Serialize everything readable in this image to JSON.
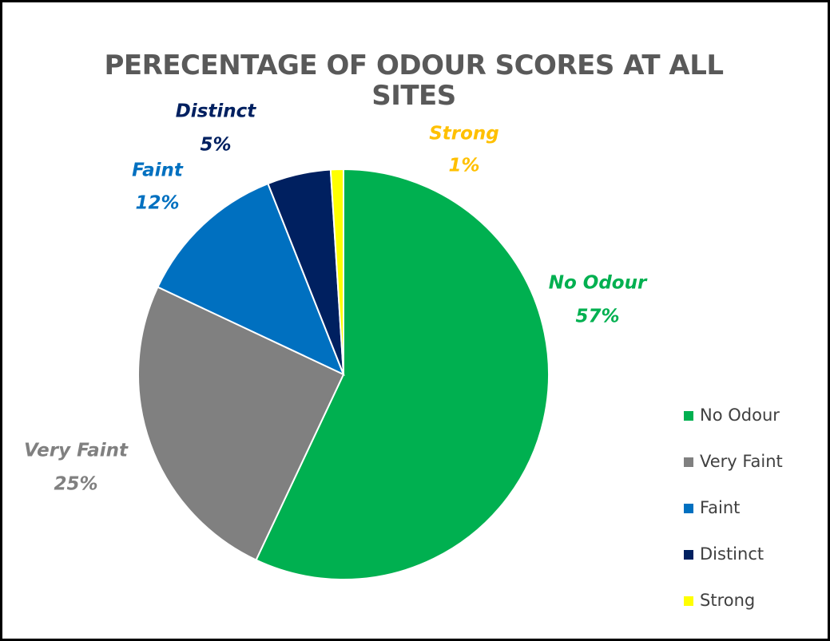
{
  "chart_data": {
    "type": "pie",
    "title": "PERECENTAGE OF ODOUR SCORES AT ALL SITES",
    "categories": [
      "No Odour",
      "Very Faint",
      "Faint",
      "Distinct",
      "Strong"
    ],
    "values": [
      57,
      25,
      12,
      5,
      1
    ],
    "value_labels": [
      "57%",
      "25%",
      "12%",
      "5%",
      "1%"
    ],
    "colors": [
      "#00b050",
      "#808080",
      "#0070c0",
      "#002060",
      "#ffff00"
    ],
    "label_colors": [
      "#00b050",
      "#808080",
      "#0070c0",
      "#002060",
      "#ffc000"
    ],
    "legend": "right"
  }
}
